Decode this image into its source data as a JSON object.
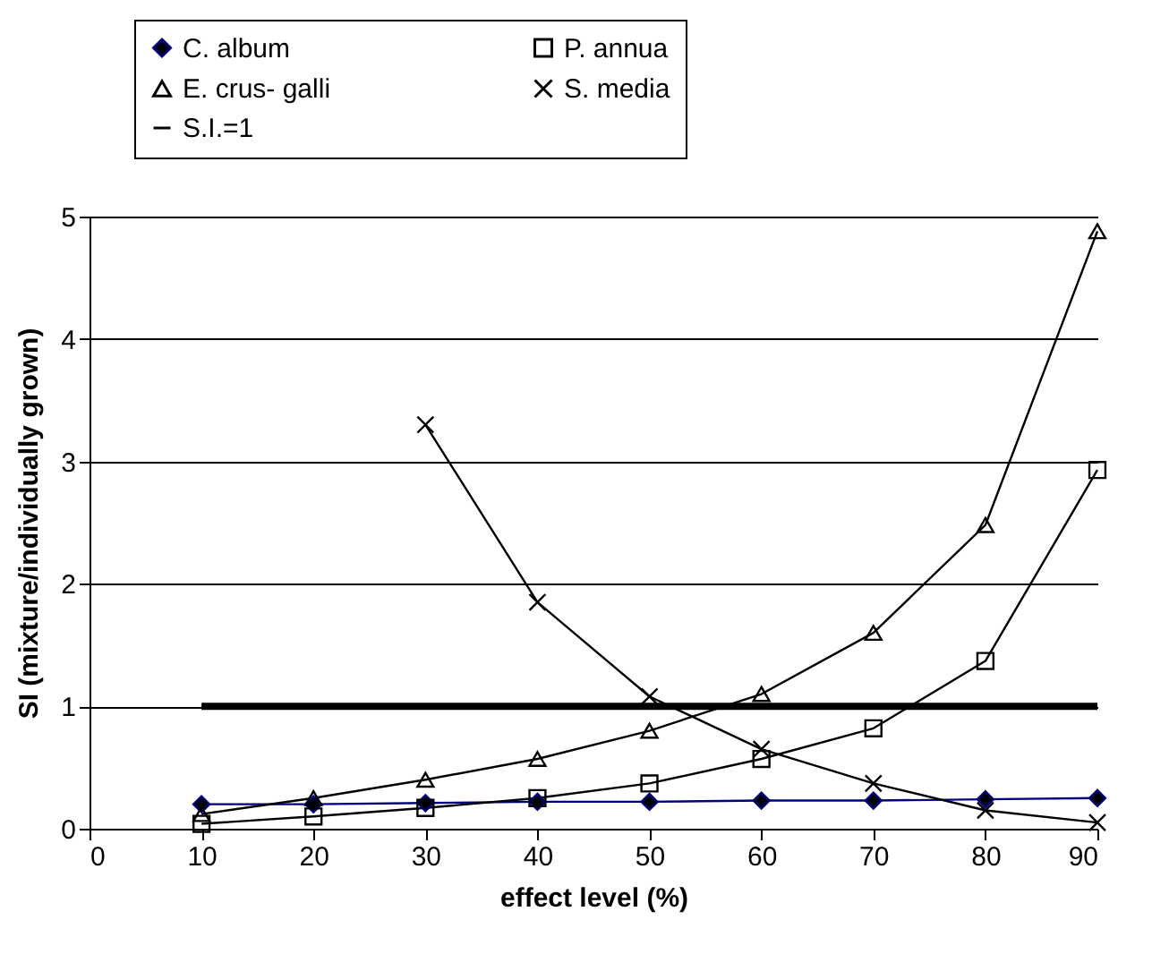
{
  "chart_data": {
    "type": "line",
    "xlabel": "effect level (%)",
    "ylabel": "SI (mixture/individually grown)",
    "x": [
      10,
      20,
      30,
      40,
      50,
      60,
      70,
      80,
      90
    ],
    "series": [
      {
        "name": "C. album",
        "color": "#000080",
        "marker": "diamond",
        "values": [
          0.2,
          0.2,
          0.21,
          0.22,
          0.22,
          0.23,
          0.23,
          0.24,
          0.25
        ]
      },
      {
        "name": "P. annua",
        "color": "#000000",
        "marker": "square",
        "values": [
          0.04,
          0.1,
          0.17,
          0.25,
          0.37,
          0.57,
          0.82,
          1.37,
          2.93
        ]
      },
      {
        "name": "E. crus- galli",
        "color": "#000000",
        "marker": "triangle",
        "values": [
          0.12,
          0.25,
          0.4,
          0.57,
          0.8,
          1.1,
          1.6,
          2.48,
          4.88
        ]
      },
      {
        "name": "S. media",
        "color": "#000000",
        "marker": "cross",
        "values": [
          null,
          null,
          3.3,
          1.85,
          1.08,
          0.65,
          0.37,
          0.15,
          0.05
        ]
      },
      {
        "name": "S.I.=1",
        "color": "#000000",
        "marker": "none",
        "x": [
          10,
          90
        ],
        "values": [
          1,
          1
        ]
      }
    ],
    "xlim": [
      0,
      90
    ],
    "xticks": [
      0,
      10,
      20,
      30,
      40,
      50,
      60,
      70,
      80,
      90
    ],
    "ylim": [
      0,
      5
    ],
    "yticks": [
      0,
      1,
      2,
      3,
      4,
      5
    ],
    "grid": "y",
    "legend": "top"
  }
}
